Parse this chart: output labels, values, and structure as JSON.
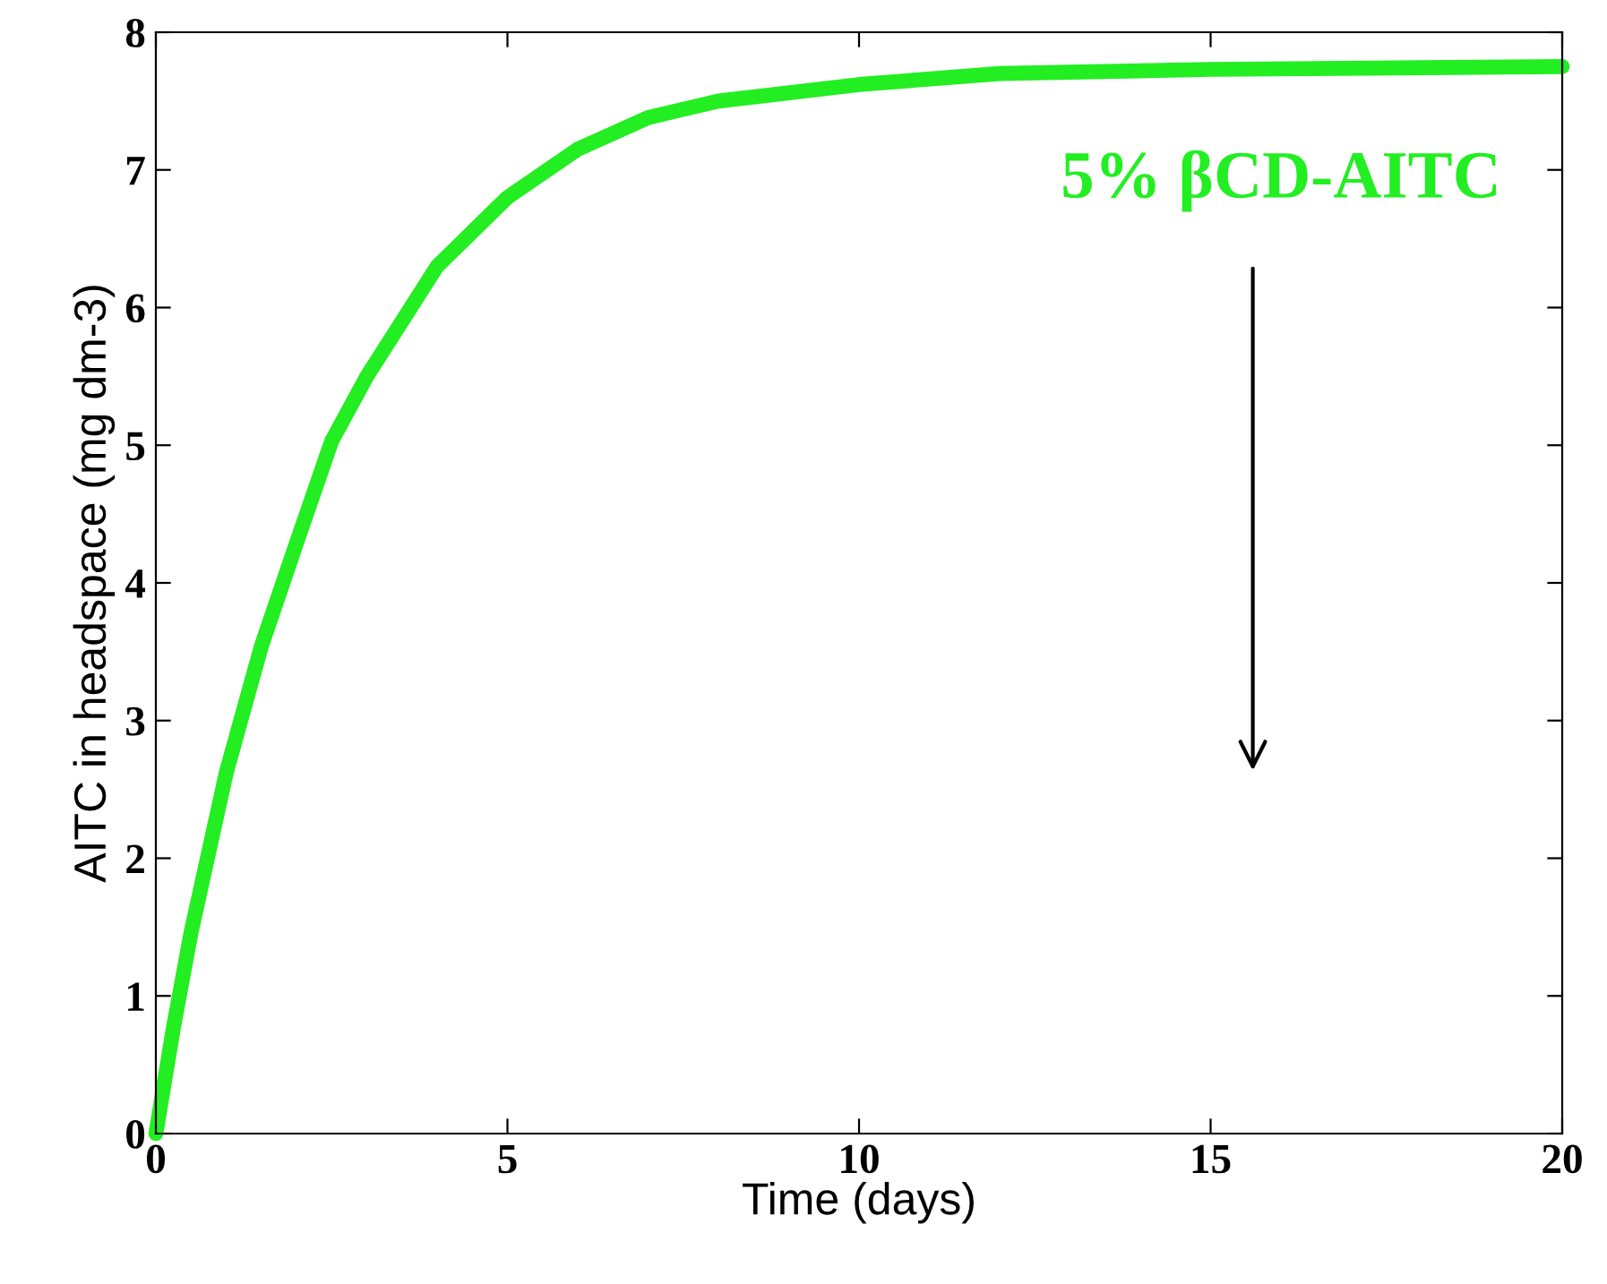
{
  "chart_data": {
    "type": "line",
    "xlabel": "Time (days)",
    "ylabel": "AITC in headspace (mg dm-3)",
    "x": [
      0,
      0.25,
      0.5,
      1,
      1.5,
      2,
      2.5,
      3,
      4,
      5,
      6,
      7,
      8,
      10,
      12,
      15,
      20
    ],
    "series": [
      {
        "color": "#22ee22",
        "values": [
          0,
          0.77,
          1.46,
          2.62,
          3.54,
          4.29,
          5.03,
          5.5,
          6.3,
          6.8,
          7.15,
          7.38,
          7.5,
          7.62,
          7.7,
          7.73,
          7.75
        ]
      }
    ],
    "annotations": [
      "5% βCD-AITC"
    ],
    "xlim": [
      0,
      20
    ],
    "ylim": [
      0,
      8
    ],
    "xticks": [
      0,
      5,
      10,
      15,
      20
    ],
    "yticks": [
      0,
      1,
      2,
      3,
      4,
      5,
      6,
      7,
      8
    ],
    "grid": false,
    "legend": false,
    "marker": "none",
    "line_style": "solid"
  }
}
